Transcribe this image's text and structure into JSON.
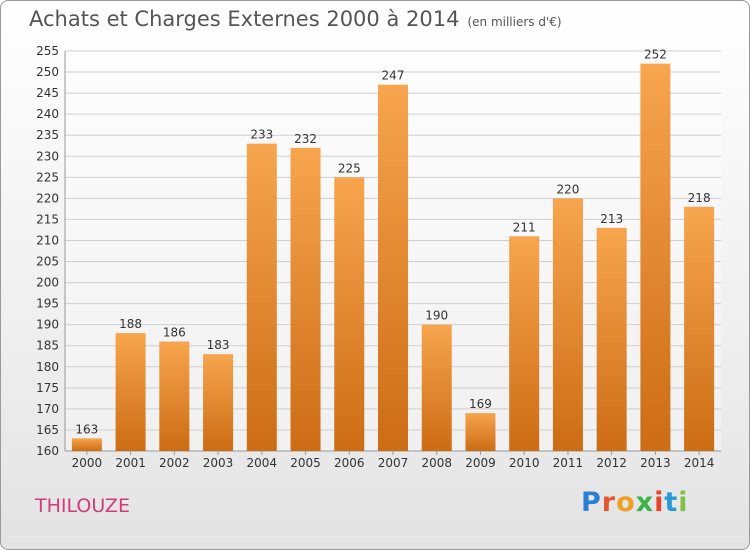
{
  "header": {
    "title": "Achats et Charges Externes 2000 à 2014",
    "subtitle": "(en milliers d'€)"
  },
  "footer": {
    "commune": "THILOUZE",
    "logo_text": "Proxiti",
    "logo_letters": [
      "P",
      "r",
      "o",
      "x",
      "i",
      "t",
      "i"
    ]
  },
  "colors": {
    "bar_light": "#f7a54e",
    "bar_dark": "#cc6c14",
    "grid": "#cfcfcf",
    "text": "#333333"
  },
  "chart_data": {
    "type": "bar",
    "title": "Achats et Charges Externes 2000 à 2014",
    "subtitle": "(en milliers d'€)",
    "xlabel": "",
    "ylabel": "",
    "categories": [
      "2000",
      "2001",
      "2002",
      "2003",
      "2004",
      "2005",
      "2006",
      "2007",
      "2008",
      "2009",
      "2010",
      "2011",
      "2012",
      "2013",
      "2014"
    ],
    "values": [
      163,
      188,
      186,
      183,
      233,
      232,
      225,
      247,
      190,
      169,
      211,
      220,
      213,
      252,
      218
    ],
    "ylim": [
      160,
      255
    ],
    "yticks": [
      160,
      165,
      170,
      175,
      180,
      185,
      190,
      195,
      200,
      205,
      210,
      215,
      220,
      225,
      230,
      235,
      240,
      245,
      250,
      255
    ],
    "grid": true,
    "legend": "none"
  }
}
